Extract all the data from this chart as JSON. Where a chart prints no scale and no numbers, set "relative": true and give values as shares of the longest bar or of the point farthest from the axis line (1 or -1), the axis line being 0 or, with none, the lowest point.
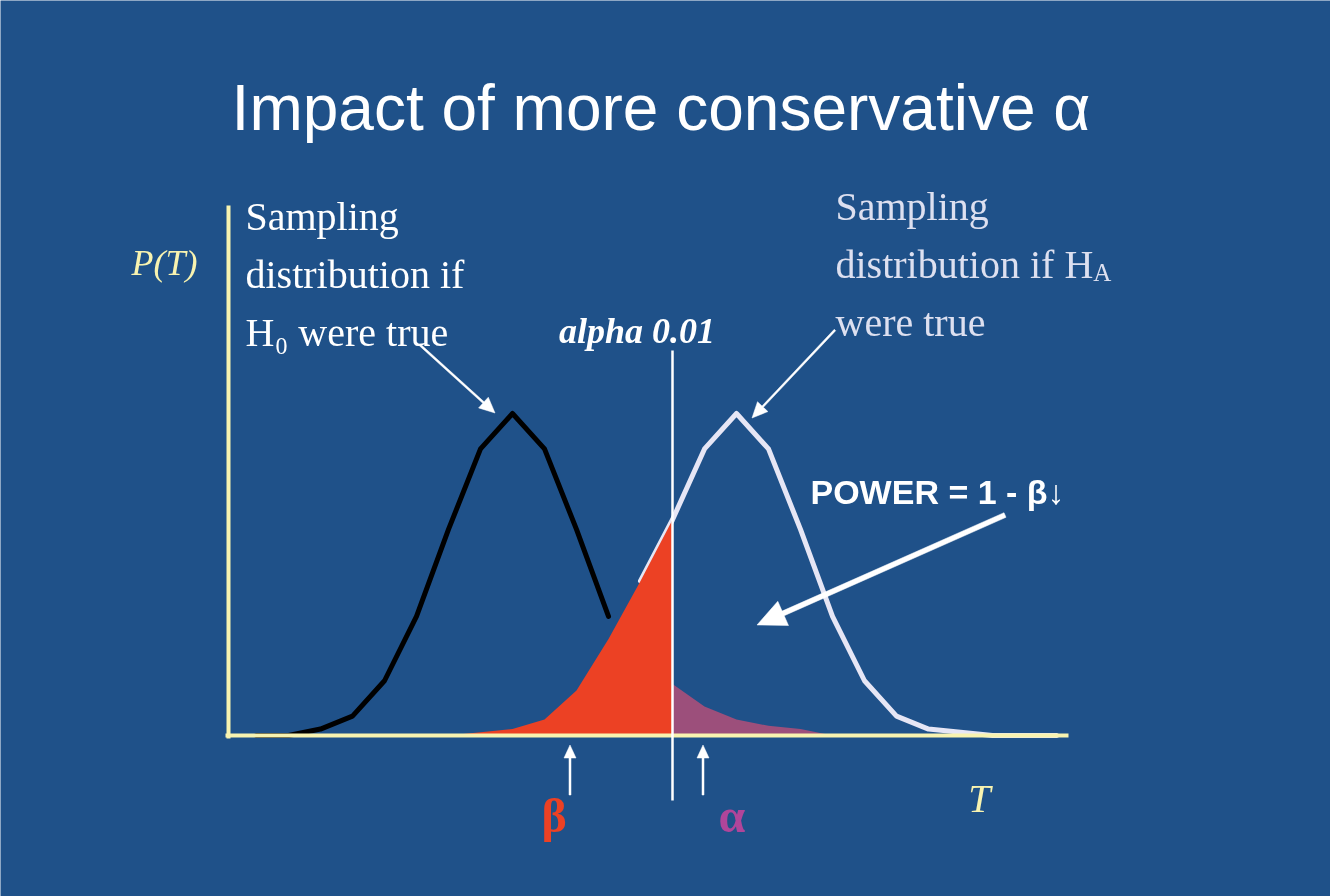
{
  "chart_data": {
    "type": "line",
    "title": "Impact of more conservative α",
    "ylabel": "P(T)",
    "xlabel": "T",
    "relative": true,
    "categories": [
      null,
      null,
      null,
      null,
      null,
      null,
      null,
      null,
      null,
      null,
      null,
      null,
      null,
      null,
      null,
      null,
      null,
      null,
      null,
      null,
      null,
      null,
      null,
      null,
      null,
      null
    ],
    "series": [
      {
        "color": "#000000",
        "values": [
          0,
          0,
          0.02,
          0.06,
          0.17,
          0.37,
          0.64,
          0.89,
          1,
          0.89,
          0.64,
          0.37,
          null,
          null,
          null,
          null,
          null,
          null,
          null,
          null,
          null,
          null,
          null,
          null,
          null,
          null
        ]
      },
      {
        "color": "#e6e6f5",
        "values": [
          null,
          null,
          null,
          null,
          null,
          null,
          null,
          null,
          null,
          null,
          null,
          null,
          0.48,
          0.67,
          0.89,
          1,
          0.89,
          0.64,
          0.37,
          0.17,
          0.06,
          0.02,
          0.01,
          0,
          0,
          0
        ]
      },
      {
        "type": "area",
        "color": "#ec4124",
        "values": [
          null,
          null,
          null,
          null,
          null,
          null,
          0,
          0.01,
          0.02,
          0.05,
          0.14,
          0.3,
          0.48,
          0.67,
          null,
          null,
          null,
          null,
          null,
          null,
          null,
          null,
          null,
          null,
          null,
          null
        ]
      },
      {
        "type": "area",
        "color": "#9c4f7b",
        "values": [
          null,
          null,
          null,
          null,
          null,
          null,
          null,
          null,
          null,
          null,
          null,
          null,
          null,
          0.16,
          0.09,
          0.05,
          0.03,
          0.02,
          0,
          null,
          null,
          null,
          null,
          null,
          null,
          null
        ]
      }
    ],
    "annotations": [
      "alpha 0.01",
      "Sampling\ndistribution if\nH₀ were true",
      "Sampling\ndistribution if H$_{A}$\nwere true",
      "POWER  = 1 - β↓",
      "β",
      "α"
    ]
  }
}
